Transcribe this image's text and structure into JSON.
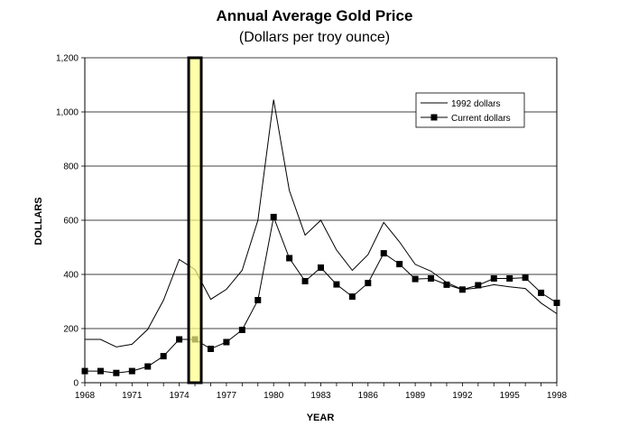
{
  "chart_data": {
    "type": "line",
    "title": "Annual Average Gold Price",
    "subtitle": "(Dollars per troy ounce)",
    "xlabel": "YEAR",
    "ylabel": "DOLLARS",
    "xlim": [
      1968,
      1998
    ],
    "ylim": [
      0,
      1200
    ],
    "x_ticks": [
      "1968",
      "1971",
      "1974",
      "1977",
      "1980",
      "1983",
      "1986",
      "1989",
      "1992",
      "1995",
      "1998"
    ],
    "y_ticks": [
      "0",
      "200",
      "400",
      "600",
      "800",
      "1,000",
      "1,200"
    ],
    "grid": "horizontal",
    "legend_position": "top-right",
    "x": [
      1968,
      1969,
      1970,
      1971,
      1972,
      1973,
      1974,
      1975,
      1976,
      1977,
      1978,
      1979,
      1980,
      1981,
      1982,
      1983,
      1984,
      1985,
      1986,
      1987,
      1988,
      1989,
      1990,
      1991,
      1992,
      1993,
      1994,
      1995,
      1996,
      1997,
      1998
    ],
    "series": [
      {
        "name": "1992 dollars",
        "marker": "none",
        "values": [
          160,
          160,
          132,
          142,
          197,
          305,
          455,
          418,
          308,
          345,
          415,
          600,
          1045,
          710,
          545,
          600,
          490,
          415,
          473,
          592,
          520,
          437,
          412,
          370,
          344,
          350,
          362,
          354,
          348,
          294,
          255
        ]
      },
      {
        "name": "Current dollars",
        "marker": "square",
        "values": [
          43,
          43,
          36,
          43,
          60,
          98,
          160,
          160,
          125,
          150,
          195,
          305,
          612,
          460,
          375,
          425,
          363,
          318,
          368,
          478,
          438,
          383,
          385,
          362,
          344,
          360,
          385,
          385,
          388,
          332,
          295
        ]
      }
    ],
    "annotations": [
      {
        "type": "highlight-band",
        "x_start": 1974.6,
        "x_end": 1975.4,
        "color": "#ffff88",
        "border": "#000000"
      }
    ]
  },
  "colors": {
    "line": "#000000",
    "grid": "#000000",
    "highlight": "#ffff88"
  }
}
